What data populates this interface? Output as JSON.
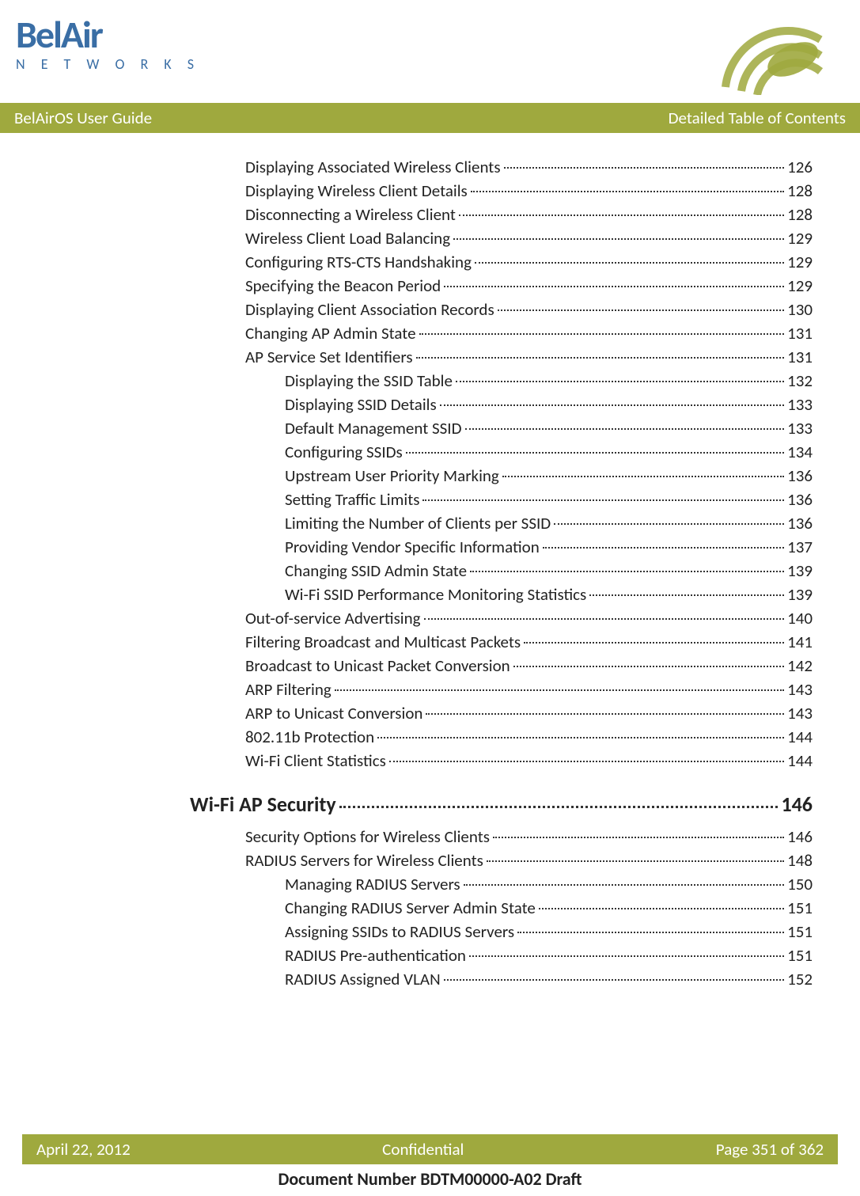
{
  "logo": {
    "top": "BelAir",
    "bottom": "N E T W O R K S"
  },
  "titleBar": {
    "left": "BelAirOS User Guide",
    "right": "Detailed Table of Contents"
  },
  "toc": {
    "items": [
      {
        "indent": 1,
        "label": "Displaying Associated Wireless Clients",
        "page": "126"
      },
      {
        "indent": 1,
        "label": "Displaying Wireless Client Details",
        "page": "128"
      },
      {
        "indent": 1,
        "label": "Disconnecting a Wireless Client",
        "page": "128"
      },
      {
        "indent": 1,
        "label": "Wireless Client Load Balancing",
        "page": "129"
      },
      {
        "indent": 1,
        "label": "Configuring RTS-CTS Handshaking",
        "page": "129"
      },
      {
        "indent": 1,
        "label": "Specifying the Beacon Period",
        "page": "129"
      },
      {
        "indent": 1,
        "label": "Displaying Client Association Records",
        "page": "130"
      },
      {
        "indent": 1,
        "label": "Changing AP Admin State",
        "page": "131"
      },
      {
        "indent": 1,
        "label": "AP Service Set Identifiers",
        "page": "131"
      },
      {
        "indent": 2,
        "label": "Displaying the SSID Table",
        "page": "132"
      },
      {
        "indent": 2,
        "label": "Displaying SSID Details",
        "page": "133"
      },
      {
        "indent": 2,
        "label": "Default Management SSID",
        "page": "133"
      },
      {
        "indent": 2,
        "label": "Configuring SSIDs",
        "page": "134"
      },
      {
        "indent": 2,
        "label": "Upstream User Priority Marking",
        "page": "136"
      },
      {
        "indent": 2,
        "label": "Setting Traffic Limits",
        "page": "136"
      },
      {
        "indent": 2,
        "label": "Limiting the Number of Clients per SSID",
        "page": "136"
      },
      {
        "indent": 2,
        "label": "Providing Vendor Specific Information",
        "page": "137"
      },
      {
        "indent": 2,
        "label": "Changing SSID Admin State",
        "page": "139"
      },
      {
        "indent": 2,
        "label": "Wi-Fi SSID Performance Monitoring Statistics",
        "page": "139"
      },
      {
        "indent": 1,
        "label": "Out-of-service Advertising",
        "page": "140"
      },
      {
        "indent": 1,
        "label": "Filtering Broadcast and Multicast Packets",
        "page": "141"
      },
      {
        "indent": 1,
        "label": "Broadcast to Unicast Packet Conversion",
        "page": "142"
      },
      {
        "indent": 1,
        "label": "ARP Filtering",
        "page": "143"
      },
      {
        "indent": 1,
        "label": "ARP to Unicast Conversion",
        "page": "143"
      },
      {
        "indent": 1,
        "label": "802.11b Protection",
        "page": "144"
      },
      {
        "indent": 1,
        "label": "Wi-Fi Client Statistics",
        "page": "144"
      }
    ],
    "section": {
      "label": "Wi-Fi AP Security",
      "page": "146"
    },
    "items2": [
      {
        "indent": 1,
        "label": "Security Options for Wireless Clients",
        "page": "146"
      },
      {
        "indent": 1,
        "label": "RADIUS Servers for Wireless Clients",
        "page": "148"
      },
      {
        "indent": 2,
        "label": "Managing RADIUS Servers",
        "page": "150"
      },
      {
        "indent": 2,
        "label": "Changing RADIUS Server Admin State",
        "page": "151"
      },
      {
        "indent": 2,
        "label": "Assigning SSIDs to RADIUS Servers",
        "page": "151"
      },
      {
        "indent": 2,
        "label": "RADIUS Pre-authentication",
        "page": "151"
      },
      {
        "indent": 2,
        "label": "RADIUS Assigned VLAN",
        "page": "152"
      }
    ]
  },
  "footer": {
    "left": "April 22, 2012",
    "center": "Confidential",
    "right": "Page 351 of 362"
  },
  "docNumber": "Document Number BDTM00000-A02 Draft",
  "colors": {
    "bar": "#9fa93e",
    "logo": "#3a6ea5",
    "text": "#222222"
  }
}
